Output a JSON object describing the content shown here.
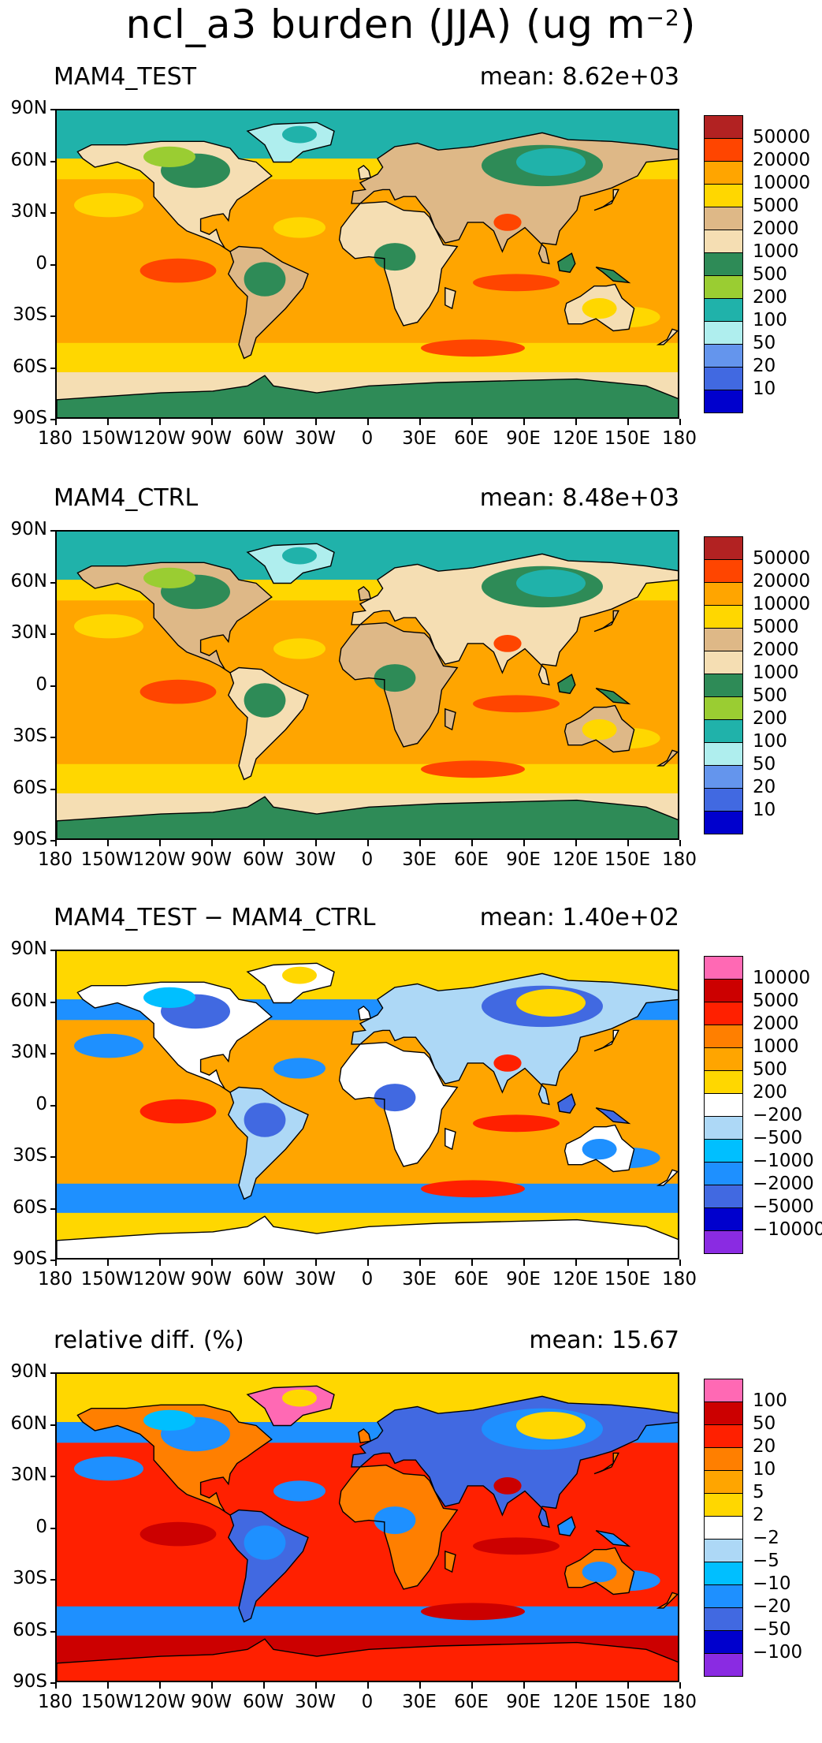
{
  "figure": {
    "title": "ncl_a3 burden (JJA) (ug m",
    "title_sup": "−2",
    "title_close": ")"
  },
  "lat_labels": [
    "90N",
    "60N",
    "30N",
    "0",
    "30S",
    "60S",
    "90S"
  ],
  "lon_labels": [
    "180",
    "150W",
    "120W",
    "90W",
    "60W",
    "30W",
    "0",
    "30E",
    "60E",
    "90E",
    "120E",
    "150E",
    "180"
  ],
  "panels": [
    {
      "label": "MAM4_TEST",
      "mean": "mean: 8.62e+03",
      "legend_values": [
        "50000",
        "20000",
        "10000",
        "5000",
        "2000",
        "1000",
        "500",
        "200",
        "100",
        "50",
        "20",
        "10"
      ],
      "legend_colors": [
        "#b22222",
        "#ff4500",
        "#ffa500",
        "#ffd700",
        "#deb887",
        "#f5deb3",
        "#2e8b57",
        "#9acd32",
        "#20b2aa",
        "#afeeee",
        "#6495ed",
        "#4169e1",
        "#0000cd"
      ],
      "map_colors": {
        "ocean": "#ffa500",
        "band": "#ffd700",
        "land": "#f5deb3",
        "land2": "#deb887",
        "green": "#2e8b57",
        "lgreen": "#9acd32",
        "teal": "#20b2aa",
        "pale": "#afeeee",
        "hot": "#ff4500",
        "ice": "#2e8b57",
        "ice2": "#f5deb3"
      }
    },
    {
      "label": "MAM4_CTRL",
      "mean": "mean: 8.48e+03",
      "legend_values": [
        "50000",
        "20000",
        "10000",
        "5000",
        "2000",
        "1000",
        "500",
        "200",
        "100",
        "50",
        "20",
        "10"
      ],
      "legend_colors": [
        "#b22222",
        "#ff4500",
        "#ffa500",
        "#ffd700",
        "#deb887",
        "#f5deb3",
        "#2e8b57",
        "#9acd32",
        "#20b2aa",
        "#afeeee",
        "#6495ed",
        "#4169e1",
        "#0000cd"
      ],
      "map_colors": {
        "ocean": "#ffa500",
        "band": "#ffd700",
        "land": "#deb887",
        "land2": "#f5deb3",
        "green": "#2e8b57",
        "lgreen": "#9acd32",
        "teal": "#20b2aa",
        "pale": "#afeeee",
        "hot": "#ff4500",
        "ice": "#2e8b57",
        "ice2": "#f5deb3"
      }
    },
    {
      "label": "MAM4_TEST − MAM4_CTRL",
      "mean": "mean: 1.40e+02",
      "legend_values": [
        "10000",
        "5000",
        "2000",
        "1000",
        "500",
        "200",
        "−200",
        "−500",
        "−1000",
        "−2000",
        "−5000",
        "−10000"
      ],
      "legend_colors": [
        "#ff69b4",
        "#cc0000",
        "#ff2000",
        "#ff7f00",
        "#ffa500",
        "#ffd700",
        "#ffffff",
        "#add8f6",
        "#00bfff",
        "#1e90ff",
        "#4169e1",
        "#0000cd",
        "#8a2be2"
      ],
      "map_colors": {
        "ocean": "#ffa500",
        "band": "#1e90ff",
        "land": "#ffffff",
        "land2": "#add8f6",
        "green": "#4169e1",
        "lgreen": "#00bfff",
        "teal": "#ffd700",
        "pale": "#ffffff",
        "hot": "#ff2000",
        "ice": "#ffffff",
        "ice2": "#ffd700"
      }
    },
    {
      "label": "relative diff. (%)",
      "mean": "mean: 15.67",
      "legend_values": [
        "100",
        "50",
        "20",
        "10",
        "5",
        "2",
        "−2",
        "−5",
        "−10",
        "−20",
        "−50",
        "−100"
      ],
      "legend_colors": [
        "#ff69b4",
        "#cc0000",
        "#ff2000",
        "#ff7f00",
        "#ffa500",
        "#ffd700",
        "#ffffff",
        "#add8f6",
        "#00bfff",
        "#1e90ff",
        "#4169e1",
        "#0000cd",
        "#8a2be2"
      ],
      "map_colors": {
        "ocean": "#ff2000",
        "band": "#1e90ff",
        "land": "#ff7f00",
        "land2": "#4169e1",
        "green": "#1e90ff",
        "lgreen": "#00bfff",
        "teal": "#ffd700",
        "pale": "#ff69b4",
        "hot": "#cc0000",
        "ice": "#ff2000",
        "ice2": "#cc0000"
      }
    }
  ]
}
